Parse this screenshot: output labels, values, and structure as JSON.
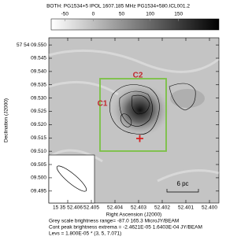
{
  "chart_data": {
    "type": "image",
    "title": "BOTH: PG1534+5  IPOL  1607.185 MHz  PG1534+580.ICL001.2",
    "xlabel": "Right Ascension (J2000)",
    "ylabel": "Declination (J2000)",
    "xlim": [
      52.4068,
      52.3996
    ],
    "ylim": [
      9.4905,
      9.5527
    ],
    "xticks": [
      {
        "value": 52.406,
        "label": "15 35 52.406"
      },
      {
        "value": 52.405,
        "label": "52.405"
      },
      {
        "value": 52.404,
        "label": "52.404"
      },
      {
        "value": 52.403,
        "label": "52.403"
      },
      {
        "value": 52.402,
        "label": "52.402"
      },
      {
        "value": 52.401,
        "label": "52.401"
      },
      {
        "value": 52.4,
        "label": "52.400"
      }
    ],
    "yticks": [
      {
        "value": 9.55,
        "label": "57 54 09.550"
      },
      {
        "value": 9.545,
        "label": "09.545"
      },
      {
        "value": 9.54,
        "label": "09.540"
      },
      {
        "value": 9.535,
        "label": "09.535"
      },
      {
        "value": 9.53,
        "label": "09.530"
      },
      {
        "value": 9.525,
        "label": "09.525"
      },
      {
        "value": 9.52,
        "label": "09.520"
      },
      {
        "value": 9.515,
        "label": "09.515"
      },
      {
        "value": 9.51,
        "label": "09.510"
      },
      {
        "value": 9.505,
        "label": "09.505"
      },
      {
        "value": 9.5,
        "label": "09.500"
      },
      {
        "value": 9.495,
        "label": "09.495"
      }
    ],
    "colorbar": {
      "lim": [
        -74,
        221
      ],
      "ticks": [
        -50,
        0,
        50,
        100,
        150
      ]
    },
    "annotations": [
      "C1",
      "C2",
      "6 pc"
    ],
    "notes": [
      "Grey scale brightness range= -87.0 165.3 MicroJY/BEAM",
      "Cont peak brightness extrema = -2.4621E-05 1.6403E-04 JY/BEAM",
      "Levs = 1.800E-05 * (3, 5, 7.071)"
    ]
  }
}
